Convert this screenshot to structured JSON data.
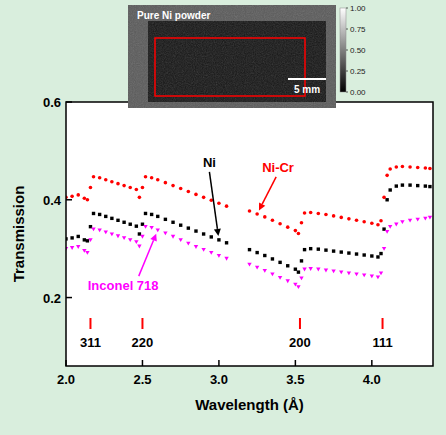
{
  "chart_data": {
    "type": "scatter",
    "x_label": "Wavelength (Å)",
    "y_label": "Transmission",
    "x": [
      2.0,
      2.04,
      2.08,
      2.12,
      2.14,
      2.16,
      2.18,
      2.22,
      2.26,
      2.3,
      2.34,
      2.38,
      2.42,
      2.46,
      2.48,
      2.5,
      2.52,
      2.56,
      2.6,
      2.65,
      2.7,
      2.75,
      2.8,
      2.85,
      2.9,
      2.95,
      3.0,
      3.05,
      3.2,
      3.25,
      3.3,
      3.35,
      3.4,
      3.45,
      3.5,
      3.52,
      3.54,
      3.56,
      3.6,
      3.65,
      3.7,
      3.75,
      3.8,
      3.85,
      3.9,
      3.95,
      4.0,
      4.04,
      4.06,
      4.08,
      4.1,
      4.12,
      4.16,
      4.2,
      4.25,
      4.3,
      4.35,
      4.38
    ],
    "xlim": [
      2.0,
      4.4
    ],
    "ylim": [
      0.06,
      0.6
    ],
    "xticks": [
      {
        "value": 2,
        "label": "2.0"
      },
      {
        "value": 2.5,
        "label": "2.5"
      },
      {
        "value": 3,
        "label": "3.0"
      },
      {
        "value": 3.5,
        "label": "3.5"
      },
      {
        "value": 4,
        "label": "4.0"
      }
    ],
    "yticks": [
      0.2,
      0.4,
      0.6
    ],
    "series": [
      {
        "name": "Ni-Cr",
        "color": "#ff0000",
        "marker": "circle",
        "values": [
          0.405,
          0.407,
          0.41,
          0.403,
          0.4,
          0.425,
          0.447,
          0.445,
          0.441,
          0.437,
          0.433,
          0.429,
          0.425,
          0.421,
          0.405,
          0.425,
          0.447,
          0.445,
          0.441,
          0.435,
          0.429,
          0.423,
          0.417,
          0.411,
          0.405,
          0.399,
          0.393,
          0.387,
          0.377,
          0.371,
          0.365,
          0.358,
          0.351,
          0.344,
          0.337,
          0.331,
          0.353,
          0.373,
          0.374,
          0.372,
          0.37,
          0.367,
          0.364,
          0.361,
          0.358,
          0.355,
          0.352,
          0.349,
          0.357,
          0.405,
          0.45,
          0.463,
          0.467,
          0.468,
          0.467,
          0.466,
          0.465,
          0.464
        ]
      },
      {
        "name": "Ni",
        "color": "#000000",
        "marker": "square",
        "values": [
          0.32,
          0.322,
          0.325,
          0.318,
          0.316,
          0.345,
          0.372,
          0.37,
          0.366,
          0.362,
          0.358,
          0.354,
          0.35,
          0.346,
          0.33,
          0.35,
          0.372,
          0.37,
          0.366,
          0.36,
          0.354,
          0.348,
          0.342,
          0.336,
          0.33,
          0.324,
          0.318,
          0.312,
          0.298,
          0.292,
          0.286,
          0.279,
          0.272,
          0.265,
          0.258,
          0.252,
          0.275,
          0.298,
          0.3,
          0.299,
          0.297,
          0.295,
          0.293,
          0.291,
          0.289,
          0.287,
          0.285,
          0.283,
          0.29,
          0.34,
          0.4,
          0.42,
          0.428,
          0.43,
          0.43,
          0.429,
          0.428,
          0.427
        ]
      },
      {
        "name": "Inconel 718",
        "color": "#ff00ff",
        "marker": "triangle-down",
        "values": [
          0.3,
          0.302,
          0.304,
          0.296,
          0.292,
          0.318,
          0.34,
          0.338,
          0.334,
          0.33,
          0.326,
          0.322,
          0.318,
          0.314,
          0.305,
          0.325,
          0.345,
          0.343,
          0.338,
          0.332,
          0.325,
          0.318,
          0.311,
          0.304,
          0.298,
          0.292,
          0.286,
          0.28,
          0.268,
          0.262,
          0.255,
          0.248,
          0.241,
          0.234,
          0.227,
          0.222,
          0.24,
          0.258,
          0.259,
          0.258,
          0.256,
          0.254,
          0.252,
          0.25,
          0.248,
          0.246,
          0.244,
          0.242,
          0.25,
          0.3,
          0.335,
          0.345,
          0.35,
          0.355,
          0.358,
          0.36,
          0.362,
          0.364
        ]
      }
    ],
    "reflections": [
      {
        "label": "311",
        "x": 2.16
      },
      {
        "label": "220",
        "x": 2.5
      },
      {
        "label": "200",
        "x": 3.53
      },
      {
        "label": "111",
        "x": 4.07
      }
    ],
    "inset": {
      "title": "Pure Ni powder",
      "scale_bar": "5 mm",
      "colorbar": {
        "range": [
          0,
          1
        ],
        "ticks": [
          {
            "value": 1,
            "label": "1.00"
          },
          {
            "value": 0.75,
            "label": "0.75"
          },
          {
            "value": 0.5,
            "label": "0.50"
          },
          {
            "value": 0.25,
            "label": "0.25"
          },
          {
            "value": 0,
            "label": "0.00"
          }
        ]
      }
    }
  }
}
